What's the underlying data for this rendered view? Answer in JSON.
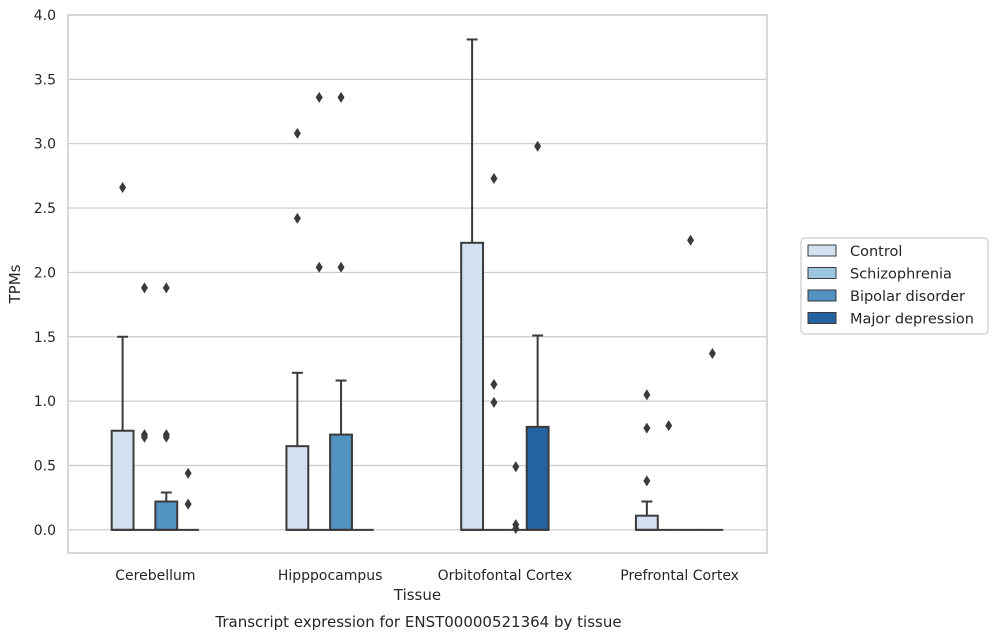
{
  "chart_data": {
    "type": "box",
    "xlabel": "Tissue",
    "ylabel": "TPMs",
    "caption": "Transcript expression for ENST00000521364 by tissue",
    "ylim": [
      -0.18,
      4.0
    ],
    "yticks": [
      0.0,
      0.5,
      1.0,
      1.5,
      2.0,
      2.5,
      3.0,
      3.5,
      4.0
    ],
    "ytick_labels": [
      "0.0",
      "0.5",
      "1.0",
      "1.5",
      "2.0",
      "2.5",
      "3.0",
      "3.5",
      "4.0"
    ],
    "grid": "horizontal",
    "legend_position": "right",
    "categories": [
      "Cerebellum",
      "Hipppocampus",
      "Orbitofontal Cortex",
      "Prefrontal Cortex"
    ],
    "series": [
      {
        "name": "Control",
        "color": "#d1e1f0",
        "boxes": [
          {
            "q1": 0.0,
            "median": 0.0,
            "q3": 0.77,
            "whislo": 0.0,
            "whishi": 1.5,
            "fliers": [
              2.66
            ]
          },
          {
            "q1": 0.0,
            "median": 0.0,
            "q3": 0.65,
            "whislo": 0.0,
            "whishi": 1.22,
            "fliers": [
              2.42,
              3.08
            ]
          },
          {
            "q1": 0.0,
            "median": 0.0,
            "q3": 2.23,
            "whislo": 0.0,
            "whishi": 3.81,
            "fliers": []
          },
          {
            "q1": 0.0,
            "median": 0.0,
            "q3": 0.11,
            "whislo": 0.0,
            "whishi": 0.22,
            "fliers": [
              0.38,
              0.79,
              1.05
            ]
          }
        ]
      },
      {
        "name": "Schizophrenia",
        "color": "#9cc6e0",
        "boxes": [
          {
            "q1": 0.0,
            "median": 0.0,
            "q3": 0.0,
            "whislo": 0.0,
            "whishi": 0.0,
            "fliers": [
              0.72,
              0.74,
              1.88
            ]
          },
          {
            "q1": 0.0,
            "median": 0.0,
            "q3": 0.0,
            "whislo": 0.0,
            "whishi": 0.0,
            "fliers": [
              2.04,
              3.36
            ]
          },
          {
            "q1": 0.0,
            "median": 0.0,
            "q3": 0.0,
            "whislo": 0.0,
            "whishi": 0.0,
            "fliers": [
              0.99,
              1.13,
              2.73
            ]
          },
          {
            "q1": 0.0,
            "median": 0.0,
            "q3": 0.0,
            "whislo": 0.0,
            "whishi": 0.0,
            "fliers": [
              0.81
            ]
          }
        ]
      },
      {
        "name": "Bipolar disorder",
        "color": "#5293c2",
        "boxes": [
          {
            "q1": 0.0,
            "median": 0.0,
            "q3": 0.22,
            "whislo": 0.0,
            "whishi": 0.29,
            "fliers": [
              0.72,
              0.74,
              1.88
            ]
          },
          {
            "q1": 0.0,
            "median": 0.0,
            "q3": 0.74,
            "whislo": 0.0,
            "whishi": 1.16,
            "fliers": [
              2.04,
              3.36
            ]
          },
          {
            "q1": 0.0,
            "median": 0.0,
            "q3": 0.0,
            "whislo": 0.0,
            "whishi": 0.0,
            "fliers": [
              0.01,
              0.04,
              0.49
            ]
          },
          {
            "q1": 0.0,
            "median": 0.0,
            "q3": 0.0,
            "whislo": 0.0,
            "whishi": 0.0,
            "fliers": [
              2.25
            ]
          }
        ]
      },
      {
        "name": "Major depression",
        "color": "#2462a0",
        "boxes": [
          {
            "q1": 0.0,
            "median": 0.0,
            "q3": 0.0,
            "whislo": 0.0,
            "whishi": 0.0,
            "fliers": [
              0.2,
              0.44
            ]
          },
          {
            "q1": 0.0,
            "median": 0.0,
            "q3": 0.0,
            "whislo": 0.0,
            "whishi": 0.0,
            "fliers": []
          },
          {
            "q1": 0.0,
            "median": 0.0,
            "q3": 0.8,
            "whislo": 0.0,
            "whishi": 1.51,
            "fliers": [
              2.98
            ]
          },
          {
            "q1": 0.0,
            "median": 0.0,
            "q3": 0.0,
            "whislo": 0.0,
            "whishi": 0.0,
            "fliers": [
              1.37
            ]
          }
        ]
      }
    ]
  }
}
